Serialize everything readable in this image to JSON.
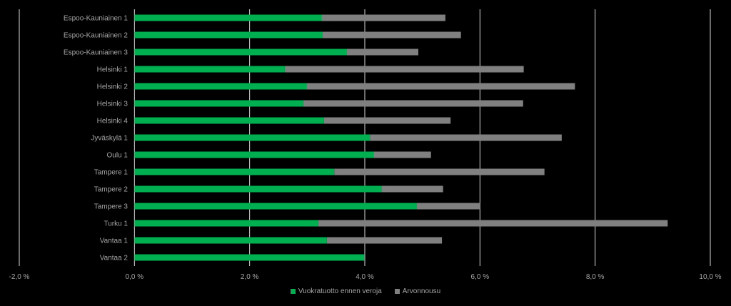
{
  "chart_data": {
    "type": "bar",
    "orientation": "horizontal",
    "stacked": true,
    "categories": [
      "Espoo-Kauniainen 1",
      "Espoo-Kauniainen 2",
      "Espoo-Kauniainen 3",
      "Helsinki 1",
      "Helsinki 2",
      "Helsinki 3",
      "Helsinki 4",
      "Jyväskylä 1",
      "Oulu 1",
      "Tampere 1",
      "Tampere 2",
      "Tampere 3",
      "Turku 1",
      "Vantaa 1",
      "Vantaa 2"
    ],
    "series": [
      {
        "name": "Vuokratuotto ennen veroja",
        "color": "#00b050",
        "values": [
          3.25,
          3.26,
          3.68,
          2.61,
          2.99,
          2.93,
          3.29,
          4.09,
          4.15,
          3.47,
          4.29,
          4.9,
          3.19,
          3.34,
          3.99
        ]
      },
      {
        "name": "Arvonnousu",
        "color": "#808080",
        "values": [
          2.15,
          2.41,
          1.25,
          4.15,
          4.66,
          3.82,
          2.2,
          3.33,
          1.0,
          3.65,
          1.07,
          1.11,
          6.07,
          2.0,
          0.0
        ]
      }
    ],
    "x_ticks": [
      "-2,0 %",
      "0,0 %",
      "2,0 %",
      "4,0 %",
      "6,0 %",
      "8,0 %",
      "10,0 %"
    ],
    "x_tick_values": [
      -2,
      0,
      2,
      4,
      6,
      8,
      10
    ],
    "xlim": [
      -2,
      10
    ],
    "grid": "vertical",
    "legend_position": "bottom",
    "title": "",
    "xlabel": "",
    "ylabel": "",
    "colors": {
      "background": "#000000",
      "gridline": "#d9d9d9",
      "label_text": "#a6a6a6"
    }
  }
}
